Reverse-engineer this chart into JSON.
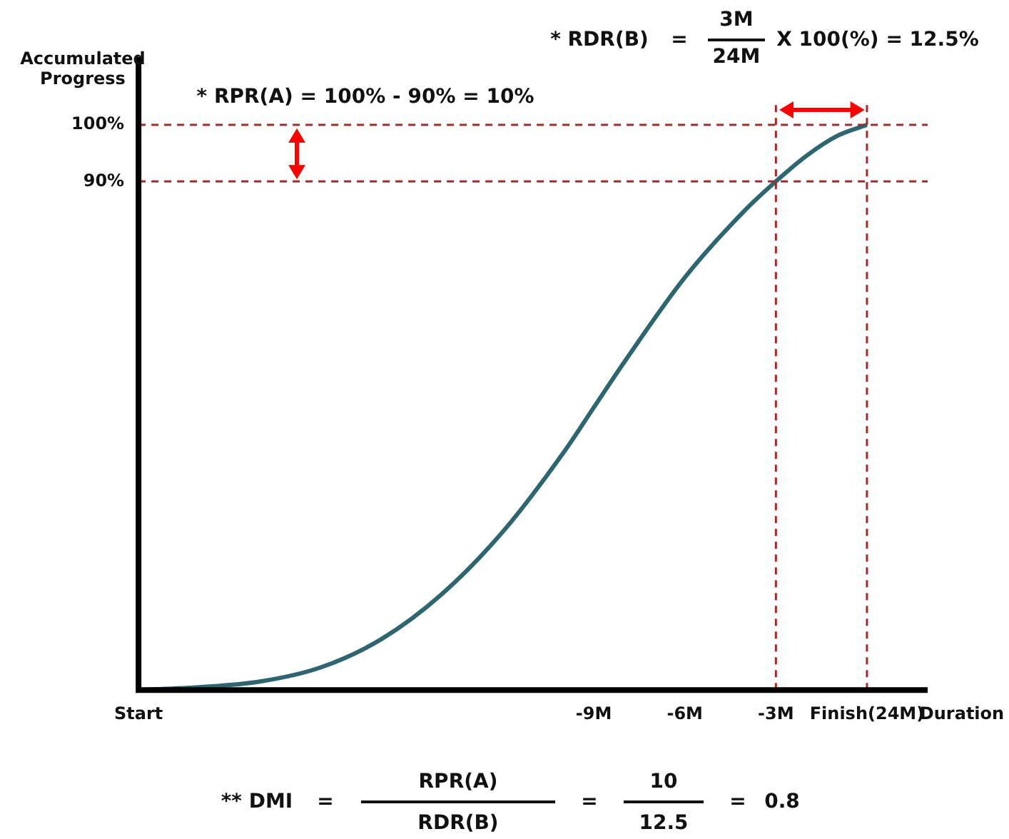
{
  "chart_data": {
    "type": "line",
    "xlabel": "Duration",
    "ylabel": "Accumulated Progress",
    "x": [
      -24,
      -22,
      -20,
      -18,
      -16,
      -14,
      -12,
      -10,
      -9,
      -8,
      -6,
      -4,
      -3,
      -2,
      -1,
      0
    ],
    "series": [
      {
        "color": "#2d6670",
        "values": [
          0,
          0.5,
          1.5,
          4,
          9,
          17,
          28,
          42,
          50,
          58,
          73,
          85,
          90,
          94.5,
          98,
          100
        ]
      }
    ],
    "xlim": [
      -24,
      2
    ],
    "xticks": [
      {
        "value": -24,
        "label": "Start"
      },
      {
        "value": -9,
        "label": "-9M"
      },
      {
        "value": -6,
        "label": "-6M"
      },
      {
        "value": -3,
        "label": "-3M"
      },
      {
        "value": 0,
        "label": "Finish(24M)"
      }
    ],
    "ylim": [
      0,
      112
    ],
    "yticks": [
      {
        "value": 90,
        "label": "90%"
      },
      {
        "value": 100,
        "label": "100%"
      }
    ],
    "ref_lines": [
      {
        "axis": "y",
        "value": 100,
        "color": "#a52a2a",
        "line_style": "dashed"
      },
      {
        "axis": "y",
        "value": 90,
        "color": "#a52a2a",
        "line_style": "dashed"
      },
      {
        "axis": "x",
        "value": -3,
        "color": "#a52a2a",
        "line_style": "dashed"
      },
      {
        "axis": "x",
        "value": 0,
        "color": "#a52a2a",
        "line_style": "dashed"
      }
    ],
    "annotations": [
      "* RDR(B)",
      "=",
      "3M",
      "24M",
      "X  100(%) =  12.5%",
      "* RPR(A) = 100% - 90% = 10%",
      "** DMI",
      "=",
      "RPR(A)",
      "RDR(B)",
      "=",
      "10",
      "12.5",
      "=",
      "0.8"
    ],
    "grid": false,
    "legend": false,
    "marker": "none"
  }
}
